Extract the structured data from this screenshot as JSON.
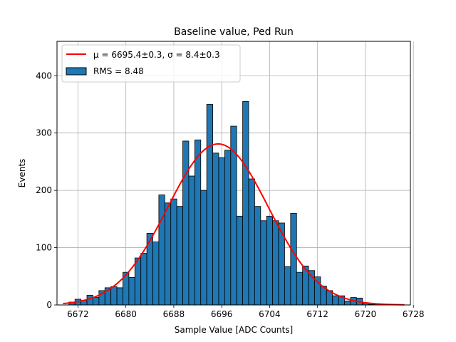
{
  "chart_data": {
    "type": "bar",
    "title": "Baseline value, Ped Run",
    "xlabel": "Sample Value [ADC Counts]",
    "ylabel": "Events",
    "xlim": [
      6668.5,
      6727.5
    ],
    "ylim": [
      0,
      460
    ],
    "x_ticks": [
      6672,
      6680,
      6688,
      6696,
      6704,
      6712,
      6720,
      6728
    ],
    "y_ticks": [
      0,
      100,
      200,
      300,
      400
    ],
    "grid": true,
    "legend_placement": "upper-left",
    "bar_color": "#1f77b4",
    "fit_color": "#ff0000",
    "series": [
      {
        "name": "RMS = 8.48",
        "type": "histogram",
        "bin_width": 1,
        "x": [
          6670,
          6671,
          6672,
          6673,
          6674,
          6675,
          6676,
          6677,
          6678,
          6679,
          6680,
          6681,
          6682,
          6683,
          6684,
          6685,
          6686,
          6687,
          6688,
          6689,
          6690,
          6691,
          6692,
          6693,
          6694,
          6695,
          6696,
          6697,
          6698,
          6699,
          6700,
          6701,
          6702,
          6703,
          6704,
          6705,
          6706,
          6707,
          6708,
          6709,
          6710,
          6711,
          6712,
          6713,
          6714,
          6715,
          6716,
          6717,
          6718,
          6719,
          6720,
          6721,
          6722,
          6723,
          6724,
          6725,
          6726
        ],
        "values": [
          0,
          5,
          10,
          8,
          17,
          13,
          25,
          30,
          32,
          30,
          57,
          48,
          82,
          90,
          125,
          110,
          192,
          178,
          185,
          172,
          286,
          225,
          288,
          200,
          350,
          265,
          257,
          270,
          312,
          155,
          355,
          220,
          172,
          147,
          155,
          147,
          143,
          67,
          160,
          57,
          68,
          60,
          49,
          33,
          25,
          16,
          16,
          7,
          13,
          12,
          3,
          1,
          1,
          0,
          0,
          0,
          0
        ]
      },
      {
        "name": "$\\mu = 6695.4\\pm0.3$, $\\sigma = 8.4\\pm0.3$",
        "legend_text": "μ = 6695.4±0.3, σ = 8.4±0.3",
        "type": "line",
        "mu": 6695.4,
        "sigma": 8.4,
        "amplitude": 281,
        "x_range": [
          6669.5,
          6726.5
        ]
      }
    ]
  }
}
